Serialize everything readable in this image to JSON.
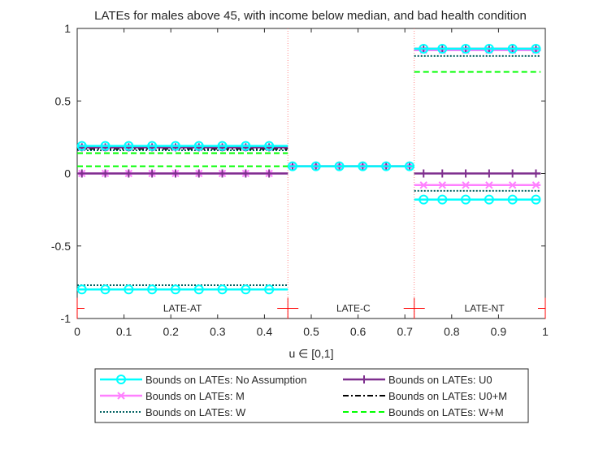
{
  "chart_data": {
    "type": "line",
    "title": "LATEs for males above 45, with income below median, and bad health condition",
    "xlabel": "u ∈ [0,1]",
    "ylabel": "",
    "xlim": [
      0,
      1
    ],
    "ylim": [
      -1,
      1
    ],
    "xticks": [
      0,
      0.1,
      0.2,
      0.3,
      0.4,
      0.5,
      0.6,
      0.7,
      0.8,
      0.9,
      1
    ],
    "xtick_labels": [
      "0",
      "0.1",
      "0.2",
      "0.3",
      "0.4",
      "0.5",
      "0.6",
      "0.7",
      "0.8",
      "0.9",
      "1"
    ],
    "yticks": [
      -1,
      -0.5,
      0,
      0.5,
      1
    ],
    "ytick_labels": [
      "-1",
      "-0.5",
      "0",
      "0.5",
      "1"
    ],
    "grid": false,
    "legend_position": "bottom",
    "legend_ncol": 2,
    "vlines": [
      0.45,
      0.72
    ],
    "regions": [
      {
        "label": "LATE-AT",
        "x": [
          0,
          0.45
        ],
        "label_x": 0.225
      },
      {
        "label": "LATE-C",
        "x": [
          0.45,
          0.72
        ],
        "label_x": 0.59
      },
      {
        "label": "LATE-NT",
        "x": [
          0.72,
          1
        ],
        "label_x": 0.87
      }
    ],
    "region_marker_y": -0.93,
    "region_label_y": -0.93,
    "series": [
      {
        "name": "Bounds on LATEs: No Assumption",
        "color": "#00FFFF",
        "style": "solid",
        "marker": "circle",
        "segments": [
          {
            "x": [
              0,
              0.45
            ],
            "y": 0.19
          },
          {
            "x": [
              0,
              0.45
            ],
            "y": -0.8
          },
          {
            "x": [
              0.45,
              0.72
            ],
            "y": 0.05
          },
          {
            "x": [
              0.72,
              0.99
            ],
            "y": 0.86
          },
          {
            "x": [
              0.72,
              0.99
            ],
            "y": -0.18
          }
        ]
      },
      {
        "name": "Bounds on LATEs: U0",
        "color": "#7E2F8E",
        "style": "solid",
        "marker": "plus",
        "segments": [
          {
            "x": [
              0,
              0.45
            ],
            "y": 0.18
          },
          {
            "x": [
              0,
              0.45
            ],
            "y": 0.0
          },
          {
            "x": [
              0.45,
              0.72
            ],
            "y": 0.05
          },
          {
            "x": [
              0.72,
              0.99
            ],
            "y": 0.86
          },
          {
            "x": [
              0.72,
              0.99
            ],
            "y": 0.0
          }
        ]
      },
      {
        "name": "Bounds on LATEs: M",
        "color": "#FF80FF",
        "style": "solid",
        "marker": "x",
        "segments": [
          {
            "x": [
              0,
              0.45
            ],
            "y": 0.18
          },
          {
            "x": [
              0,
              0.45
            ],
            "y": 0.0
          },
          {
            "x": [
              0.45,
              0.72
            ],
            "y": 0.05
          },
          {
            "x": [
              0.72,
              0.99
            ],
            "y": 0.85
          },
          {
            "x": [
              0.72,
              0.99
            ],
            "y": -0.08
          }
        ]
      },
      {
        "name": "Bounds on LATEs: U0+M",
        "color": "#000000",
        "style": "dashdot",
        "marker": "none",
        "segments": [
          {
            "x": [
              0,
              0.45
            ],
            "y": 0.17
          },
          {
            "x": [
              0,
              0.45
            ],
            "y": 0.0
          },
          {
            "x": [
              0.45,
              0.72
            ],
            "y": 0.05
          },
          {
            "x": [
              0.72,
              0.99
            ],
            "y": 0.85
          },
          {
            "x": [
              0.72,
              0.99
            ],
            "y": 0.0
          }
        ]
      },
      {
        "name": "Bounds on LATEs: W",
        "color": "#006060",
        "style": "dotted",
        "marker": "none",
        "segments": [
          {
            "x": [
              0,
              0.45
            ],
            "y": 0.16
          },
          {
            "x": [
              0,
              0.45
            ],
            "y": -0.77
          },
          {
            "x": [
              0.45,
              0.72
            ],
            "y": 0.05
          },
          {
            "x": [
              0.72,
              0.99
            ],
            "y": 0.81
          },
          {
            "x": [
              0.72,
              0.99
            ],
            "y": -0.12
          }
        ]
      },
      {
        "name": "Bounds on LATEs: W+M",
        "color": "#00FF00",
        "style": "dashed",
        "marker": "none",
        "segments": [
          {
            "x": [
              0,
              0.45
            ],
            "y": 0.14
          },
          {
            "x": [
              0,
              0.45
            ],
            "y": 0.05
          },
          {
            "x": [
              0.45,
              0.72
            ],
            "y": 0.05
          },
          {
            "x": [
              0.72,
              0.99
            ],
            "y": 0.7
          },
          {
            "x": [
              0.72,
              0.99
            ],
            "y": 0.0
          }
        ]
      }
    ],
    "marker_x": [
      0.01,
      0.06,
      0.11,
      0.16,
      0.21,
      0.26,
      0.31,
      0.36,
      0.41,
      0.46,
      0.51,
      0.56,
      0.61,
      0.66,
      0.71,
      0.74,
      0.78,
      0.83,
      0.88,
      0.93,
      0.98
    ],
    "legend_order": [
      0,
      1,
      2,
      3,
      4,
      5
    ]
  }
}
